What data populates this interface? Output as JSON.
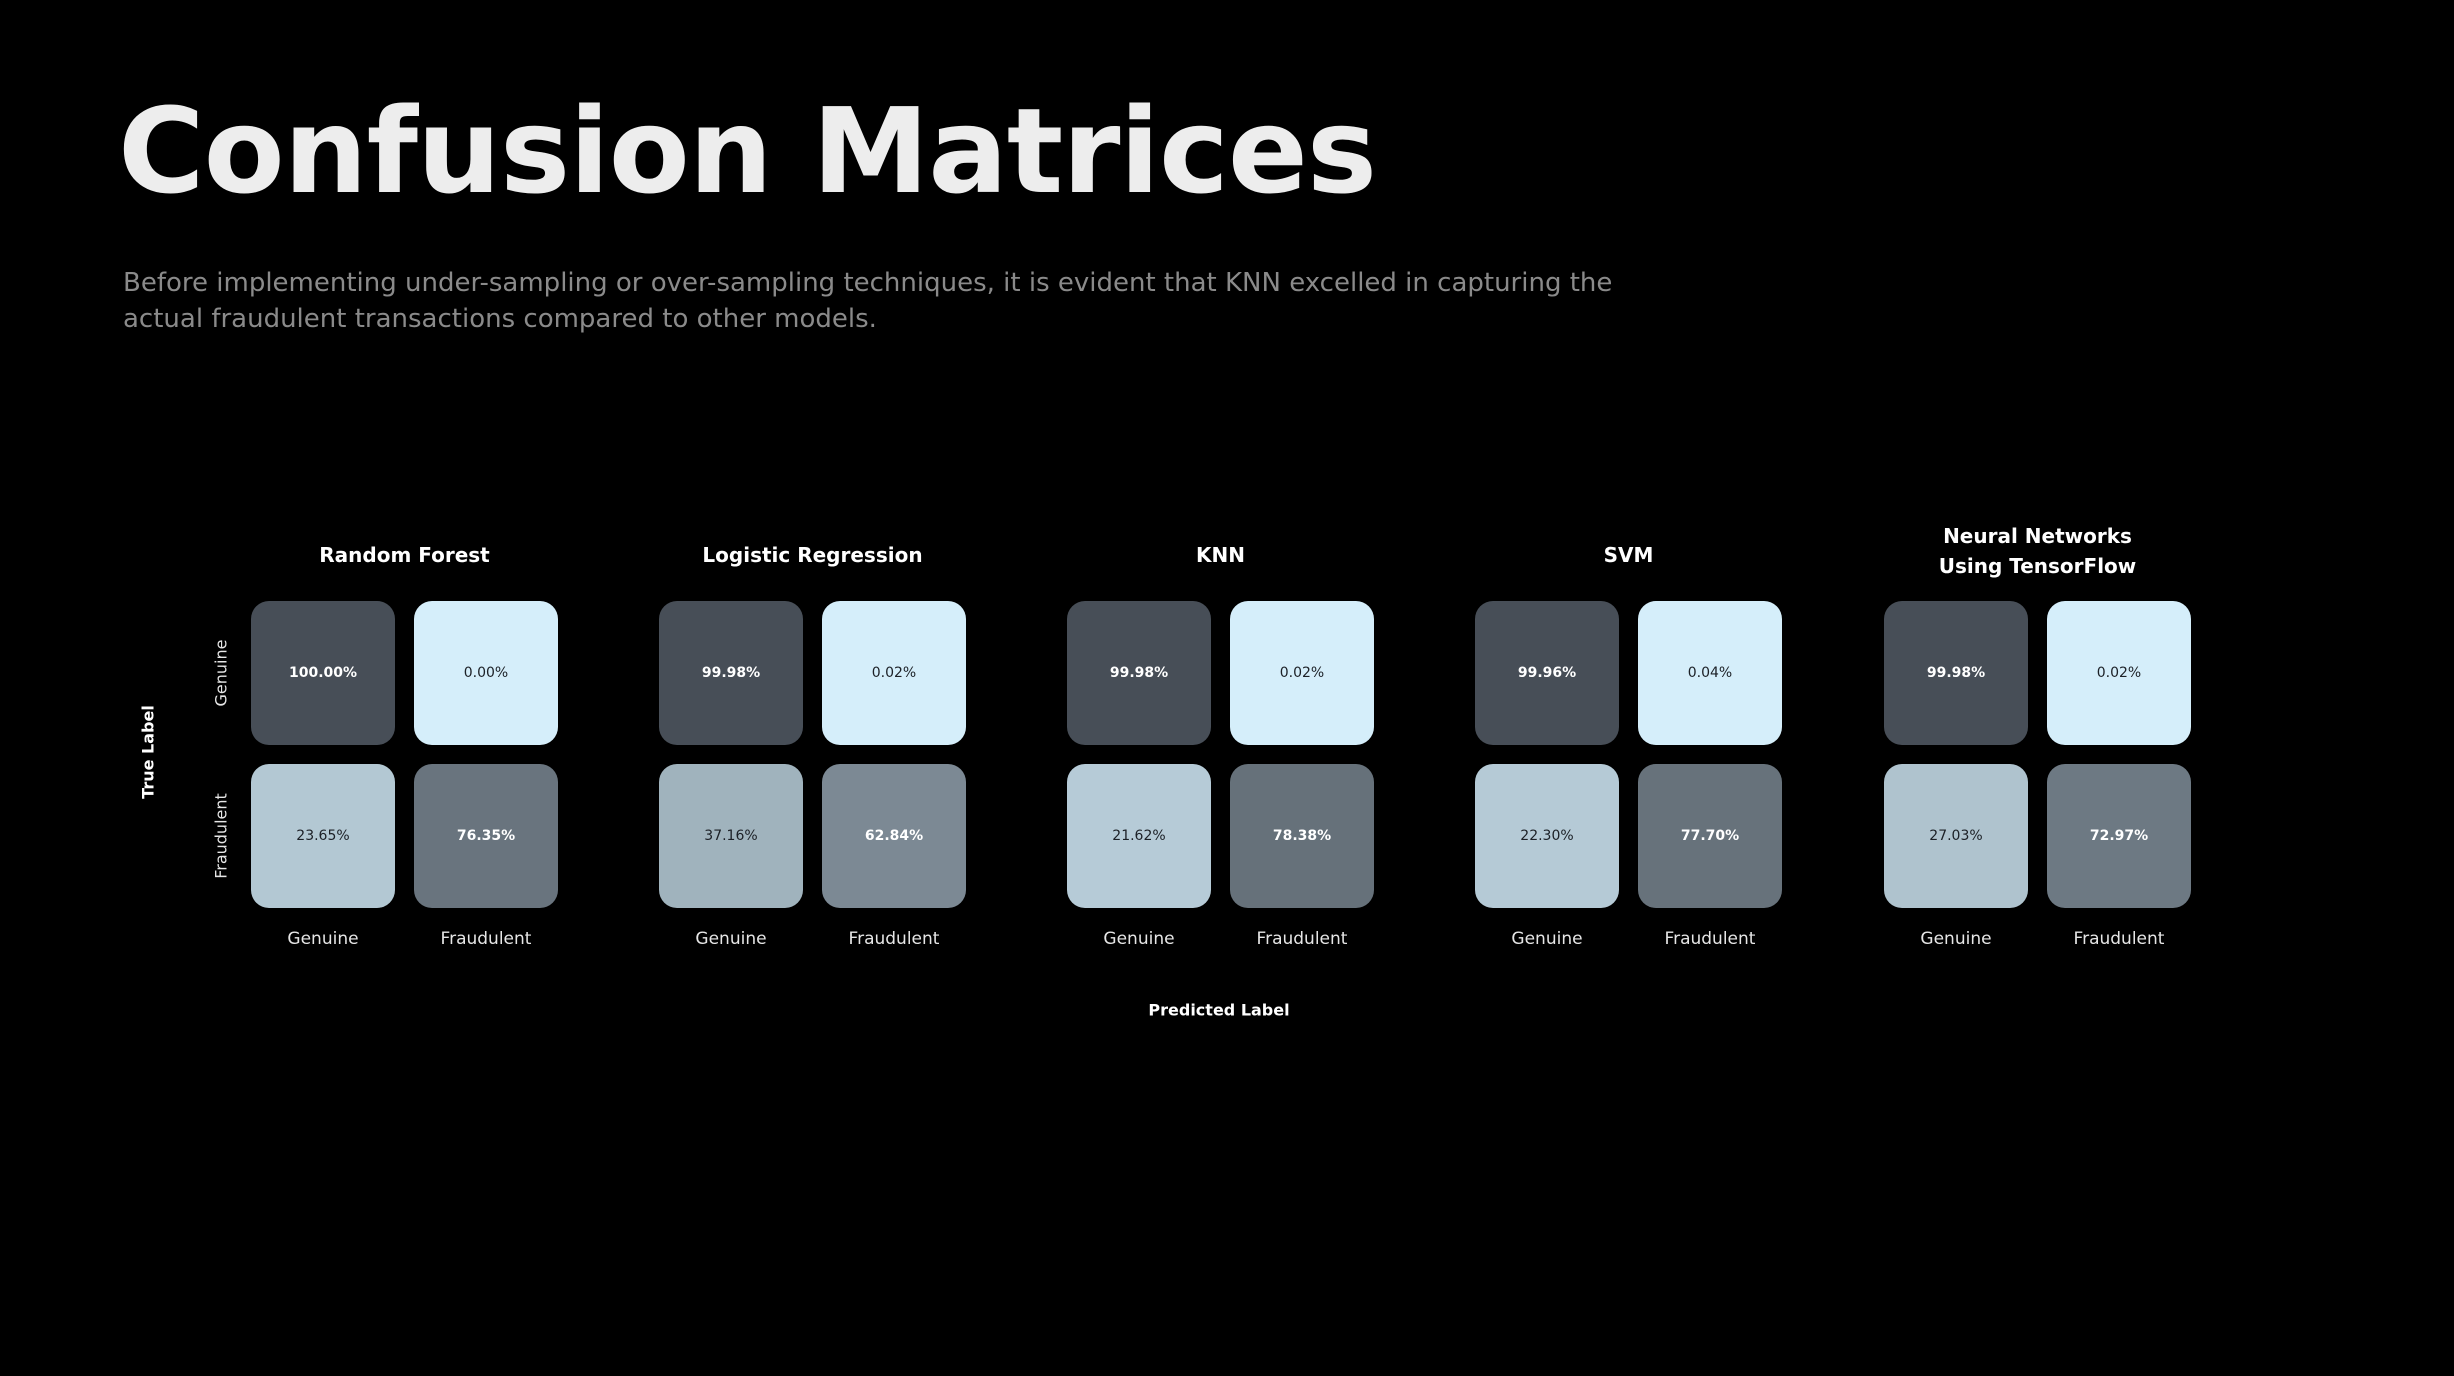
{
  "slide": {
    "title": "Confusion Matrices",
    "subtitle": "Before implementing under-sampling or over-sampling techniques, it is evident that KNN excelled in capturing the actual fraudulent transactions compared to other models."
  },
  "chart_data": {
    "type": "heatmap",
    "ylabel": "True Label",
    "xlabel": "Predicted Label",
    "row_labels": [
      "Genuine",
      "Fraudulent"
    ],
    "col_labels": [
      "Genuine",
      "Fraudulent"
    ],
    "matrices": [
      {
        "title": "Random Forest",
        "values": [
          [
            100.0,
            0.0
          ],
          [
            23.65,
            76.35
          ]
        ],
        "labels": [
          [
            "100.00%",
            "0.00%"
          ],
          [
            "23.65%",
            "76.35%"
          ]
        ]
      },
      {
        "title": "Logistic Regression",
        "values": [
          [
            99.98,
            0.02
          ],
          [
            37.16,
            62.84
          ]
        ],
        "labels": [
          [
            "99.98%",
            "0.02%"
          ],
          [
            "37.16%",
            "62.84%"
          ]
        ]
      },
      {
        "title": "KNN",
        "values": [
          [
            99.98,
            0.02
          ],
          [
            21.62,
            78.38
          ]
        ],
        "labels": [
          [
            "99.98%",
            "0.02%"
          ],
          [
            "21.62%",
            "78.38%"
          ]
        ]
      },
      {
        "title": "SVM",
        "values": [
          [
            99.96,
            0.04
          ],
          [
            22.3,
            77.7
          ]
        ],
        "labels": [
          [
            "99.96%",
            "0.04%"
          ],
          [
            "22.30%",
            "77.70%"
          ]
        ]
      },
      {
        "title": "Neural Networks\nUsing TensorFlow",
        "values": [
          [
            99.98,
            0.02
          ],
          [
            27.03,
            72.97
          ]
        ],
        "labels": [
          [
            "99.98%",
            "0.02%"
          ],
          [
            "27.03%",
            "72.97%"
          ]
        ]
      }
    ],
    "colors": {
      "low": "#d5eefa",
      "high": "#474e57"
    }
  }
}
